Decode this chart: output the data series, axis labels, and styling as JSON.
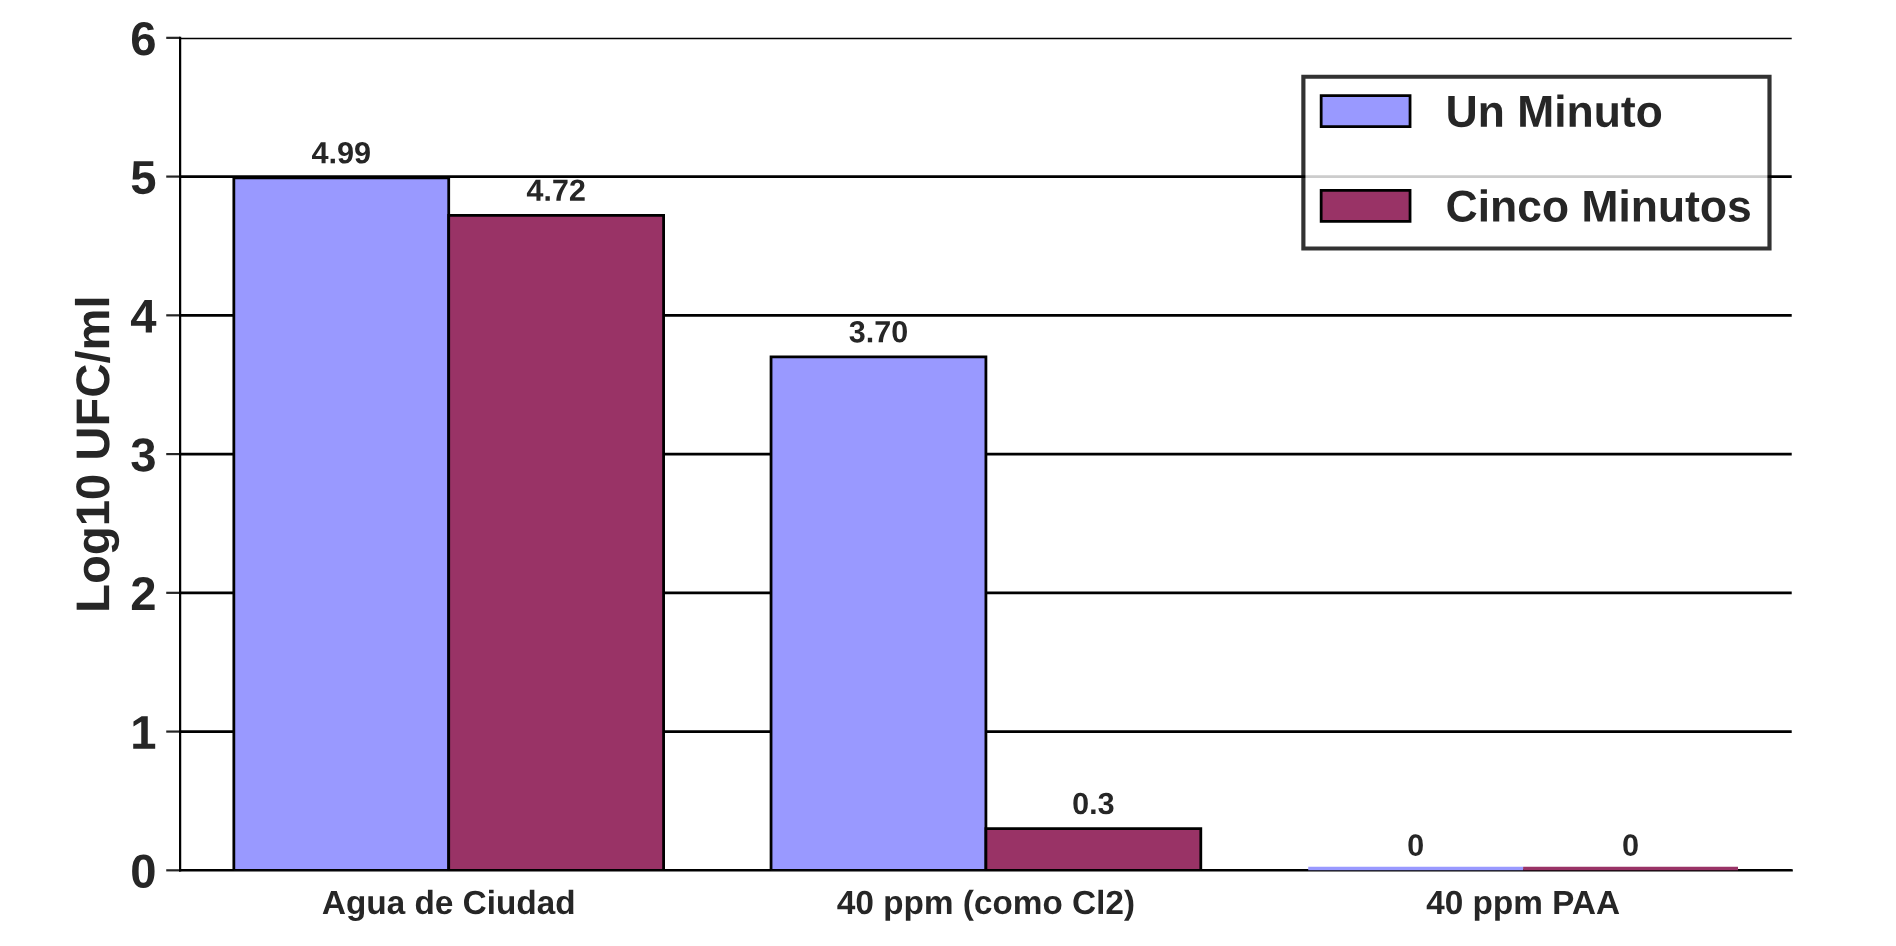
{
  "chart_data": {
    "type": "bar",
    "ylabel": "Log10 UFC/ml",
    "categories": [
      "Agua de Ciudad",
      "40 ppm (como Cl2)",
      "40 ppm PAA"
    ],
    "series": [
      {
        "name": "Un Minuto",
        "color": "#9999ff",
        "values": [
          4.99,
          3.7,
          0
        ],
        "value_labels": [
          "4.99",
          "3.70",
          "0"
        ]
      },
      {
        "name": "Cinco Minutos",
        "color": "#993366",
        "values": [
          4.72,
          0.3,
          0
        ],
        "value_labels": [
          "4.72",
          "0.3",
          "0"
        ]
      }
    ],
    "ylim": [
      0,
      6
    ],
    "yticks": [
      0,
      1,
      2,
      3,
      4,
      5,
      6
    ],
    "grid": "y",
    "legend": "top right"
  }
}
